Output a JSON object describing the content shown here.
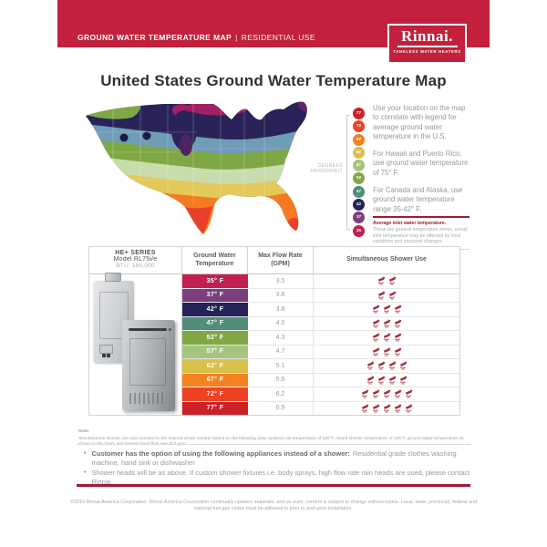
{
  "colors": {
    "brand_red": "#C2203C",
    "accent_maroon": "#9E1B33"
  },
  "header": {
    "title": "GROUND WATER TEMPERATURE MAP",
    "separator": "|",
    "subtitle": "RESIDENTIAL USE"
  },
  "logo": {
    "brand": "Rinnai.",
    "tagline": "TANKLESS WATER HEATERS"
  },
  "title": "United States Ground Water Temperature Map",
  "map_section": {
    "degrees_label_line1": "DEGREES",
    "degrees_label_line2": "FAHRENHEIT",
    "legend": [
      {
        "value": "77",
        "color": "#CE2027"
      },
      {
        "value": "72",
        "color": "#EF4123"
      },
      {
        "value": "67",
        "color": "#F5821F"
      },
      {
        "value": "62",
        "color": "#D9C04B"
      },
      {
        "value": "57",
        "color": "#A6C47F"
      },
      {
        "value": "52",
        "color": "#82A846"
      },
      {
        "value": "47",
        "color": "#4F8E79"
      },
      {
        "value": "42",
        "color": "#26225A"
      },
      {
        "value": "37",
        "color": "#7B3F7E"
      },
      {
        "value": "35",
        "color": "#C32052"
      }
    ],
    "paragraphs": [
      "Use your location on the map to correlate with legend for average ground water temperature in the U.S.",
      "For Hawaii and Puerto Rico, use ground water temperature of 75° F.",
      "For Canada and Alaska, use ground water temperature range 35-42° F."
    ],
    "inlet_note_title": "Average inlet water temperature.",
    "inlet_note_body": "These are general temperature zones, actual inlet temperature may be affected by local variations and seasonal changes."
  },
  "table": {
    "product_line1": "HE+ SERIES",
    "product_line2": "Model RL75i/e",
    "product_line3": "BTU: 180,000",
    "header_temp": "Ground Water Temperature",
    "header_gpm": "Max Flow Rate (GPM)",
    "header_shower": "Simultaneous Shower Use",
    "rows": [
      {
        "temp": "35° F",
        "color": "#C32052",
        "gpm": "3.5",
        "showers": 2
      },
      {
        "temp": "37° F",
        "color": "#7B3F7E",
        "gpm": "3.6",
        "showers": 2
      },
      {
        "temp": "42° F",
        "color": "#26225A",
        "gpm": "3.8",
        "showers": 3
      },
      {
        "temp": "47° F",
        "color": "#4F8E79",
        "gpm": "4.0",
        "showers": 3
      },
      {
        "temp": "52° F",
        "color": "#82A846",
        "gpm": "4.3",
        "showers": 3
      },
      {
        "temp": "57° F",
        "color": "#A6C47F",
        "gpm": "4.7",
        "showers": 3
      },
      {
        "temp": "62° F",
        "color": "#D9C04B",
        "gpm": "5.1",
        "showers": 4
      },
      {
        "temp": "67° F",
        "color": "#F5821F",
        "gpm": "5.6",
        "showers": 4
      },
      {
        "temp": "72° F",
        "color": "#EF4123",
        "gpm": "6.2",
        "showers": 5
      },
      {
        "temp": "77° F",
        "color": "#CE2027",
        "gpm": "6.9",
        "showers": 5
      }
    ]
  },
  "note": {
    "label": "Note:",
    "body": "Simultaneous shower use was rounded to the nearest whole number based on the following data: tankless set temperature of 120°F, mixed shower temperature of 105°F, ground water temperature as shown in the chart, and shower head flow rate of 2 gpm."
  },
  "bullets": [
    {
      "bold": "Customer has the option of using the following appliances instead of a shower:",
      "text": "Residential grade clothes washing machine, hand sink or dishwasher"
    },
    {
      "bold": "",
      "text": "Shower heads will be as above. If custom shower fixtures i.e. body sprays, high flow rate rain heads are used, please contact Rinnai."
    }
  ],
  "footer": "©2019 Rinnai America Corporation. Rinnai America Corporation continually updates materials, and as such, content is subject to change without notice. Local, state, provincial, federal and national fuel gas codes must be adhered to prior to and upon installation."
}
